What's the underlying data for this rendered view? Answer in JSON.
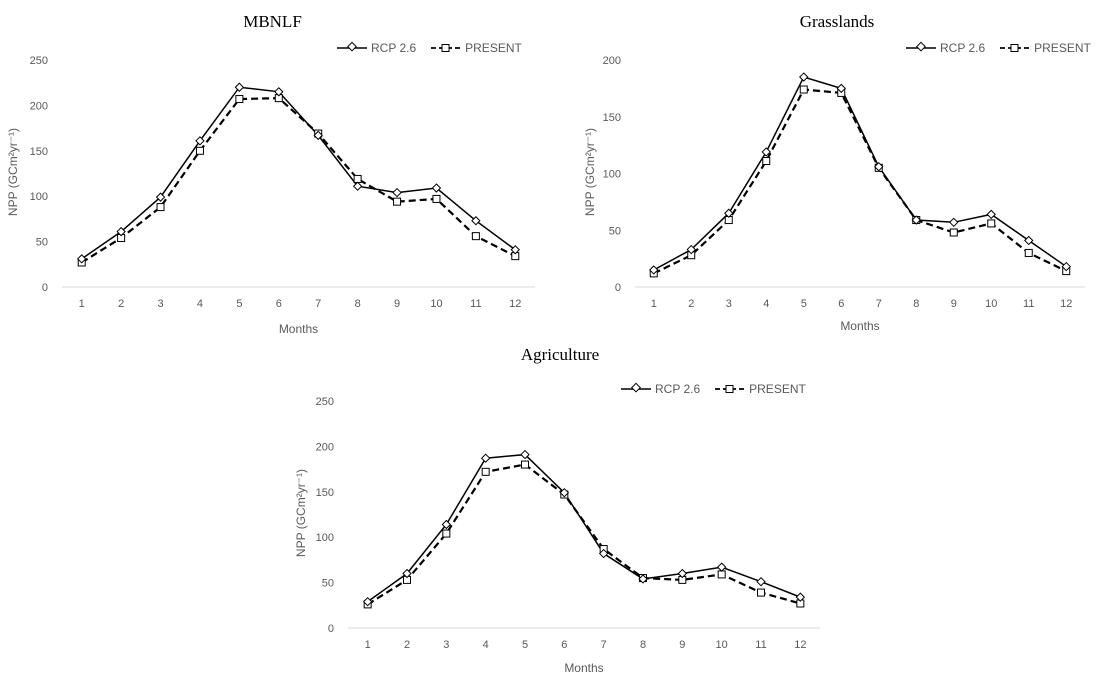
{
  "chart_data": [
    {
      "type": "line",
      "title": "MBNLF",
      "xlabel": "Months",
      "ylabel": "NPP (GCm²yr⁻¹)",
      "x": [
        1,
        2,
        3,
        4,
        5,
        6,
        7,
        8,
        9,
        10,
        11,
        12
      ],
      "ylim": [
        0,
        250
      ],
      "yticks": [
        0,
        50,
        100,
        150,
        200,
        250
      ],
      "legend_position": "top-right",
      "series": [
        {
          "name": "RCP 2.6",
          "marker": "diamond",
          "dash": "solid",
          "values": [
            31,
            61,
            99,
            161,
            220,
            215,
            167,
            111,
            104,
            109,
            73,
            41
          ]
        },
        {
          "name": "PRESENT",
          "marker": "square",
          "dash": "dashed",
          "values": [
            27,
            54,
            88,
            150,
            207,
            208,
            169,
            119,
            94,
            97,
            56,
            34
          ]
        }
      ]
    },
    {
      "type": "line",
      "title": "Grasslands",
      "xlabel": "Months",
      "ylabel": "NPP (GCm²yr⁻¹)",
      "x": [
        1,
        2,
        3,
        4,
        5,
        6,
        7,
        8,
        9,
        10,
        11,
        12
      ],
      "ylim": [
        0,
        200
      ],
      "yticks": [
        0,
        50,
        100,
        150,
        200
      ],
      "legend_position": "top-right",
      "series": [
        {
          "name": "RCP 2.6",
          "marker": "diamond",
          "dash": "solid",
          "values": [
            15,
            33,
            65,
            119,
            185,
            175,
            106,
            59,
            57,
            64,
            41,
            18
          ]
        },
        {
          "name": "PRESENT",
          "marker": "square",
          "dash": "dashed",
          "values": [
            12,
            28,
            59,
            111,
            174,
            171,
            105,
            59,
            48,
            56,
            30,
            14
          ]
        }
      ]
    },
    {
      "type": "line",
      "title": "Agriculture",
      "xlabel": "Months",
      "ylabel": "NPP (GCm²yr⁻¹)",
      "x": [
        1,
        2,
        3,
        4,
        5,
        6,
        7,
        8,
        9,
        10,
        11,
        12
      ],
      "ylim": [
        0,
        250
      ],
      "yticks": [
        0,
        50,
        100,
        150,
        200,
        250
      ],
      "legend_position": "top-right",
      "series": [
        {
          "name": "RCP 2.6",
          "marker": "diamond",
          "dash": "solid",
          "values": [
            29,
            60,
            114,
            187,
            191,
            149,
            82,
            54,
            60,
            67,
            51,
            34
          ]
        },
        {
          "name": "PRESENT",
          "marker": "square",
          "dash": "dashed",
          "values": [
            26,
            53,
            104,
            172,
            180,
            147,
            87,
            55,
            53,
            59,
            39,
            27
          ]
        }
      ]
    }
  ]
}
